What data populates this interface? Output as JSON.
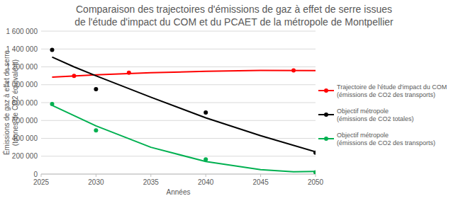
{
  "chart_data": {
    "type": "scatter",
    "title": [
      "Comparaison des trajectoires d'émissions de gaz à effet de serre issues",
      "de l'étude d'impact du COM et du PCAET de la métropole de Montpellier"
    ],
    "x_label": "Années",
    "y_label": [
      "Émissions de gaz à effet de serre",
      "(tonnes de CO2 équivalent)"
    ],
    "xlim": [
      2025,
      2050
    ],
    "xticks": [
      2025,
      2030,
      2035,
      2040,
      2045,
      2050
    ],
    "ylim": [
      0,
      1600000
    ],
    "yticks": [
      0,
      {
        "value": 200000,
        "label": "200 000"
      },
      {
        "value": 400000,
        "label": "400 000"
      },
      {
        "value": 600000,
        "label": "600 000"
      },
      {
        "value": 800000,
        "label": "800 000"
      },
      {
        "value": 1000000,
        "label": "1 000 000"
      },
      {
        "value": 1200000,
        "label": "1 200 000"
      },
      {
        "value": 1400000,
        "label": "1 400 000"
      },
      {
        "value": 1600000,
        "label": "1 600 000"
      }
    ],
    "grid": true,
    "legend": "right",
    "series": [
      {
        "name": "Trajectoire de l'étude d'impact du COM\n(émissions de CO2 des transports)",
        "color": "#ff0000",
        "marker": "circle",
        "x": [
          2028,
          2033,
          2048
        ],
        "values": [
          1100000,
          1135000,
          1160000
        ],
        "trend": {
          "x": [
            2026,
            2030,
            2035,
            2040,
            2045,
            2050
          ],
          "values": [
            1085000,
            1110000,
            1135000,
            1150000,
            1160000,
            1158000
          ]
        }
      },
      {
        "name": "Objectif métropole\n(émissions de CO2 totales)",
        "color": "#000000",
        "marker": "circle",
        "x": [
          2026,
          2030,
          2040,
          2050
        ],
        "values": [
          1390000,
          950000,
          690000,
          240000
        ],
        "trend": {
          "x": [
            2026,
            2028,
            2030,
            2035,
            2040,
            2045,
            2050
          ],
          "values": [
            1310000,
            1200000,
            1100000,
            860000,
            630000,
            430000,
            250000
          ]
        }
      },
      {
        "name": "Objectif métropole\n(émissions de CO2 des transports)",
        "color": "#00b050",
        "marker": "circle",
        "x": [
          2026,
          2030,
          2040,
          2050
        ],
        "values": [
          785000,
          490000,
          165000,
          20000
        ],
        "trend": {
          "x": [
            2026,
            2030,
            2035,
            2040,
            2045,
            2048,
            2050
          ],
          "values": [
            770000,
            540000,
            300000,
            140000,
            50000,
            25000,
            30000
          ]
        }
      }
    ]
  }
}
